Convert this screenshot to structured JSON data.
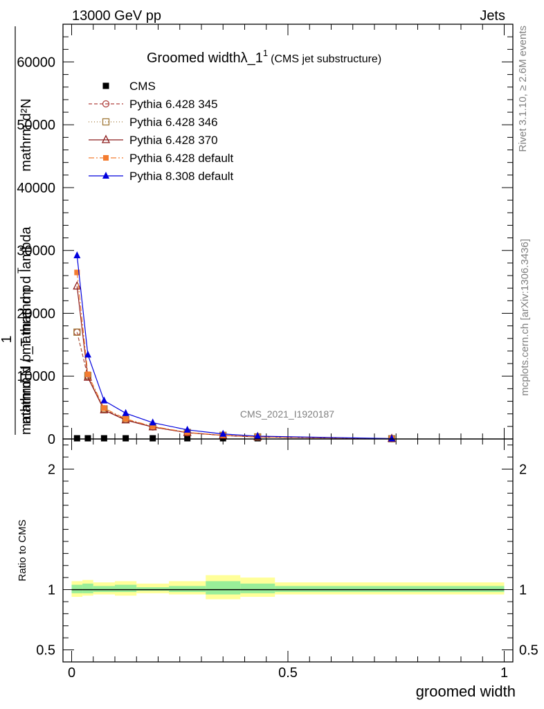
{
  "header": {
    "left": "13000 GeV pp",
    "right": "Jets"
  },
  "title": {
    "main": "Groomed widthλ_1",
    "sup": "1",
    "sub": "(CMS jet substructure)"
  },
  "side_labels": {
    "rivet": "Rivet 3.1.10, ≥ 2.6M events",
    "mcplots": "mcplots.cern.ch [arXiv:1306.3436]"
  },
  "watermark": "CMS_2021_I1920187",
  "ylabel_main": {
    "numerator": "mathrm d²N",
    "denominator": "mathrm d p_T mathrm d lambda",
    "one": "1",
    "prefactor": "mathrmd N / mathrm d p",
    "prefactor_sub": "T"
  },
  "ylabel_ratio": "Ratio to CMS",
  "xlabel": "groomed width",
  "colors": {
    "cms": "#000000",
    "py345": "#b0413e",
    "py346": "#a07838",
    "py370": "#8b1a1a",
    "pydefault": "#f47c30",
    "py8": "#0000dd",
    "band_outer": "#ffff99",
    "band_inner": "#99ee99"
  },
  "chart_data": [
    {
      "type": "line",
      "panel": "main",
      "xlim": [
        -0.02,
        1.02
      ],
      "ylim": [
        0,
        66000
      ],
      "yticks": [
        0,
        10000,
        20000,
        30000,
        40000,
        50000,
        60000
      ],
      "ytick_labels": [
        "0",
        "10000",
        "20000",
        "30000",
        "40000",
        "50000",
        "60000"
      ],
      "series": [
        {
          "name": "CMS",
          "marker": "square",
          "x": [
            0.0125,
            0.0375,
            0.075,
            0.125,
            0.1875,
            0.2675,
            0.35,
            0.43,
            0.74
          ],
          "y": [
            0,
            0,
            0,
            0,
            0,
            0,
            0,
            0,
            0
          ]
        },
        {
          "name": "Pythia 6.428 345",
          "marker": "circle",
          "dash": "5,3",
          "x": [
            0.0125,
            0.0375,
            0.075,
            0.125,
            0.1875,
            0.2675,
            0.35,
            0.43,
            0.74
          ],
          "y": [
            17000,
            9900,
            4700,
            3100,
            1900,
            1000,
            560,
            320,
            40
          ]
        },
        {
          "name": "Pythia 6.428 346",
          "marker": "square-open",
          "dash": "1,3",
          "x": [
            0.0125,
            0.0375,
            0.075,
            0.125,
            0.1875,
            0.2675,
            0.35,
            0.43,
            0.74
          ],
          "y": [
            17000,
            10100,
            4800,
            3150,
            1950,
            1050,
            580,
            330,
            40
          ]
        },
        {
          "name": "Pythia 6.428 370",
          "marker": "triangle-open",
          "dash": "",
          "x": [
            0.0125,
            0.0375,
            0.075,
            0.125,
            0.1875,
            0.2675,
            0.35,
            0.43,
            0.74
          ],
          "y": [
            24300,
            9800,
            4600,
            3000,
            1900,
            1000,
            560,
            320,
            40
          ]
        },
        {
          "name": "Pythia 6.428 default",
          "marker": "square-small",
          "dash": "8,3,2,3",
          "x": [
            0.0125,
            0.0375,
            0.075,
            0.125,
            0.1875,
            0.2675,
            0.35,
            0.43,
            0.74
          ],
          "y": [
            26500,
            10300,
            4900,
            3200,
            2000,
            1050,
            590,
            340,
            45
          ]
        },
        {
          "name": "Pythia 8.308 default",
          "marker": "triangle",
          "dash": "",
          "x": [
            0.0125,
            0.0375,
            0.075,
            0.125,
            0.1875,
            0.2675,
            0.35,
            0.43,
            0.74
          ],
          "y": [
            29200,
            13400,
            6100,
            4100,
            2600,
            1450,
            800,
            450,
            60
          ]
        }
      ]
    },
    {
      "type": "area",
      "panel": "ratio",
      "ylabel": "Ratio to CMS",
      "xlabel": "groomed width",
      "xlim": [
        -0.02,
        1.02
      ],
      "ylim": [
        0.4,
        2.25
      ],
      "yticks": [
        0.5,
        1,
        2
      ],
      "ytick_labels": [
        "0.5",
        "1",
        "2"
      ],
      "xticks": [
        0,
        0.5,
        1
      ],
      "xtick_labels": [
        "0",
        "0.5",
        "1"
      ],
      "bin_edges": [
        0,
        0.025,
        0.05,
        0.1,
        0.15,
        0.225,
        0.31,
        0.39,
        0.47,
        1.0
      ],
      "band_outer": [
        [
          0.94,
          1.07
        ],
        [
          0.95,
          1.08
        ],
        [
          0.96,
          1.06
        ],
        [
          0.95,
          1.07
        ],
        [
          0.97,
          1.05
        ],
        [
          0.96,
          1.07
        ],
        [
          0.92,
          1.12
        ],
        [
          0.94,
          1.1
        ],
        [
          0.96,
          1.06
        ]
      ],
      "band_inner": [
        [
          0.97,
          1.04
        ],
        [
          0.97,
          1.05
        ],
        [
          0.98,
          1.03
        ],
        [
          0.98,
          1.04
        ],
        [
          0.99,
          1.02
        ],
        [
          0.98,
          1.03
        ],
        [
          0.96,
          1.07
        ],
        [
          0.97,
          1.05
        ],
        [
          0.98,
          1.03
        ]
      ],
      "reference": 1
    }
  ]
}
